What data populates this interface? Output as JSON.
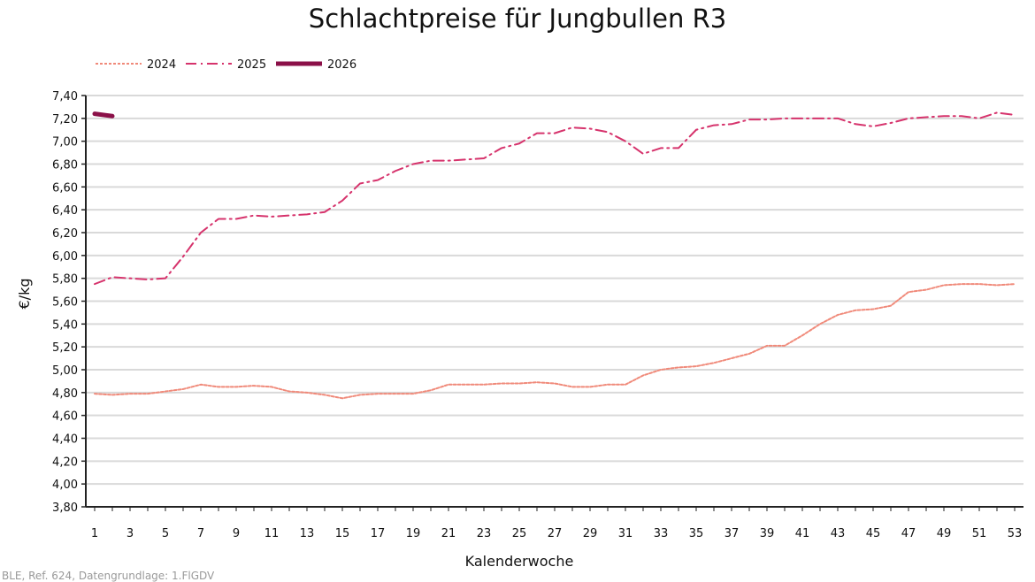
{
  "chart_data": {
    "type": "line",
    "title": "Schlachtpreise für Jungbullen R3",
    "xlabel": "Kalenderwoche",
    "ylabel": "€/kg",
    "ylim": [
      3.8,
      7.4
    ],
    "ystep": 0.2,
    "xlim": [
      1,
      53
    ],
    "x_tick_labels": [
      "1",
      "3",
      "5",
      "7",
      "9",
      "11",
      "13",
      "15",
      "17",
      "19",
      "21",
      "23",
      "25",
      "27",
      "29",
      "31",
      "33",
      "35",
      "37",
      "39",
      "41",
      "43",
      "45",
      "47",
      "49",
      "51",
      "53"
    ],
    "y_tick_labels": [
      "3,80",
      "4,00",
      "4,20",
      "4,40",
      "4,60",
      "4,80",
      "5,00",
      "5,20",
      "5,40",
      "5,60",
      "5,80",
      "6,00",
      "6,20",
      "6,40",
      "6,60",
      "6,80",
      "7,00",
      "7,20",
      "7,40"
    ],
    "grid": true,
    "legend_position": "top-left",
    "series": [
      {
        "name": "2024",
        "color": "#f08a7a",
        "style": "dotted",
        "values": [
          4.79,
          4.78,
          4.79,
          4.79,
          4.81,
          4.83,
          4.87,
          4.85,
          4.85,
          4.86,
          4.85,
          4.81,
          4.8,
          4.78,
          4.75,
          4.78,
          4.79,
          4.79,
          4.79,
          4.82,
          4.87,
          4.87,
          4.87,
          4.88,
          4.88,
          4.89,
          4.88,
          4.85,
          4.85,
          4.87,
          4.87,
          4.95,
          5.0,
          5.02,
          5.03,
          5.06,
          5.1,
          5.14,
          5.21,
          5.21,
          5.3,
          5.4,
          5.48,
          5.52,
          5.53,
          5.56,
          5.68,
          5.7,
          5.74,
          5.75,
          5.75,
          5.74,
          5.75
        ]
      },
      {
        "name": "2025",
        "color": "#d6336c",
        "style": "dash-dot",
        "values": [
          5.75,
          5.81,
          5.8,
          5.79,
          5.8,
          5.99,
          6.2,
          6.32,
          6.32,
          6.35,
          6.34,
          6.35,
          6.36,
          6.38,
          6.48,
          6.63,
          6.66,
          6.74,
          6.8,
          6.83,
          6.83,
          6.84,
          6.85,
          6.94,
          6.98,
          7.07,
          7.07,
          7.12,
          7.11,
          7.08,
          7.0,
          6.89,
          6.94,
          6.94,
          7.1,
          7.14,
          7.15,
          7.19,
          7.19,
          7.2,
          7.2,
          7.2,
          7.2,
          7.15,
          7.13,
          7.16,
          7.2,
          7.21,
          7.22,
          7.22,
          7.2,
          7.25,
          7.23
        ]
      },
      {
        "name": "2026",
        "color": "#8b1048",
        "style": "solid-thick",
        "values": [
          7.24,
          7.22
        ]
      }
    ]
  },
  "source": "BLE, Ref. 624, Datengrundlage: 1.FlGDV"
}
